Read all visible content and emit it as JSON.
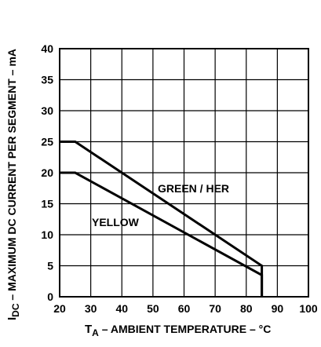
{
  "chart_data": {
    "type": "line",
    "xlabel": {
      "main": "T",
      "sub": "A",
      "rest": " – AMBIENT TEMPERATURE – °C"
    },
    "ylabel": {
      "main": "I",
      "sub": "DC",
      "rest": " – MAXIMUM DC CURRENT PER SEGMENT – mA"
    },
    "xlim": [
      20,
      100
    ],
    "ylim": [
      0,
      40
    ],
    "x_ticks": [
      20,
      30,
      40,
      50,
      60,
      70,
      80,
      90,
      100
    ],
    "y_ticks": [
      0,
      5,
      10,
      15,
      20,
      25,
      30,
      35,
      40
    ],
    "grid": true,
    "series": [
      {
        "name": "GREEN / HER",
        "points": [
          [
            20,
            25
          ],
          [
            25,
            25
          ],
          [
            85,
            5
          ],
          [
            85,
            0
          ]
        ]
      },
      {
        "name": "YELLOW",
        "points": [
          [
            20,
            20
          ],
          [
            25,
            20
          ],
          [
            85,
            3.5
          ],
          [
            85,
            0
          ]
        ]
      }
    ]
  }
}
